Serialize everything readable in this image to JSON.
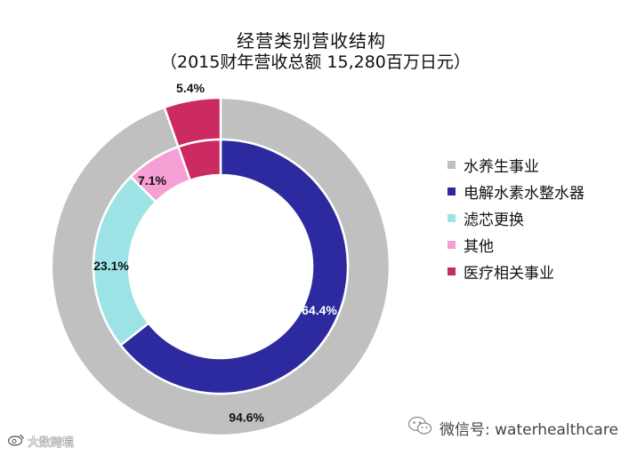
{
  "chart_data": {
    "type": "donut",
    "title": "经营类别营收结构",
    "subtitle": "（2015财年营收总额 15,280百万日元）",
    "outer_ring": [
      {
        "name": "水养生事业",
        "value": 94.6,
        "label": "94.6%",
        "color": "#c0c0c0"
      },
      {
        "name": "医疗相关事业",
        "value": 5.4,
        "label": "5.4%",
        "color": "#cc2a62"
      }
    ],
    "inner_ring": [
      {
        "name": "电解水素水整水器",
        "value": 64.4,
        "label": "64.4%",
        "color": "#2d2a9f"
      },
      {
        "name": "滤芯更换",
        "value": 23.1,
        "label": "23.1%",
        "color": "#9de3e6"
      },
      {
        "name": "其他",
        "value": 7.1,
        "label": "7.1%",
        "color": "#f59fd4"
      },
      {
        "name": "医疗相关事业",
        "value": 5.4,
        "label": "5.4%",
        "color": "#cc2a62"
      }
    ],
    "legend": [
      {
        "name": "水养生事业",
        "color": "#c0c0c0"
      },
      {
        "name": "电解水素水整水器",
        "color": "#2d2a9f"
      },
      {
        "name": "滤芯更换",
        "color": "#9de3e6"
      },
      {
        "name": "其他",
        "color": "#f59fd4"
      },
      {
        "name": "医疗相关事业",
        "color": "#cc2a62"
      }
    ],
    "legend_position": "right"
  },
  "watermarks": {
    "left": "大数跨境",
    "right": "微信号: waterhealthcare"
  }
}
